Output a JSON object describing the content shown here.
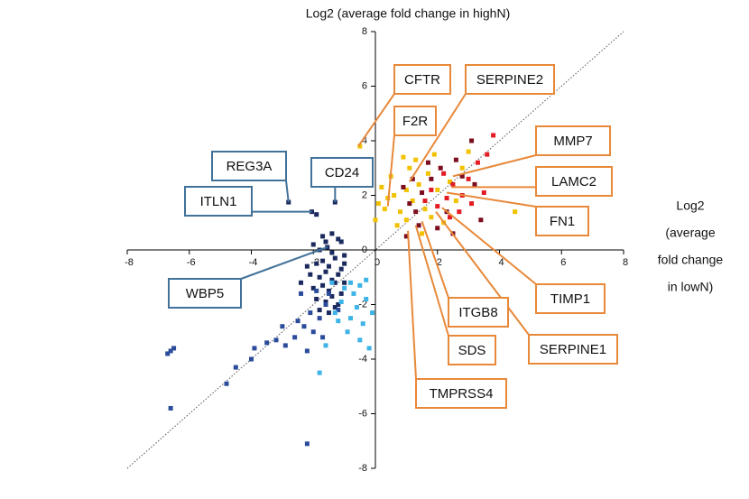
{
  "chart_data": {
    "type": "scatter",
    "title": "Log2 (average fold change in highN)",
    "x_label_lines": [
      "Log2",
      "(average",
      "fold change",
      "in lowN)"
    ],
    "xlim": [
      -8,
      8
    ],
    "ylim": [
      -8,
      8
    ],
    "xticks": [
      -8,
      -6,
      -4,
      -2,
      0,
      2,
      4,
      6,
      8
    ],
    "yticks": [
      -8,
      -6,
      -4,
      -2,
      0,
      2,
      4,
      6,
      8
    ],
    "diagonal": true,
    "series": [
      {
        "color": "#1b2a5e",
        "x": [
          -2.8,
          -1.9,
          -1.3,
          -2.05,
          -1.55,
          -2.0,
          -1.8,
          -1.6,
          -1.4,
          -1.2,
          -1.0,
          -1.9,
          -1.7,
          -1.5,
          -1.3,
          -1.1,
          -2.1,
          -1.8,
          -1.6,
          -1.4,
          -1.2,
          -1.0,
          -2.0,
          -1.7,
          -1.5,
          -1.3,
          -1.1,
          -1.9,
          -1.6,
          -1.4,
          -1.2,
          -1.8,
          -1.5,
          -1.3,
          -2.2,
          -1.0,
          -1.7,
          -1.4,
          -1.1,
          -2.4
        ],
        "y": [
          1.75,
          1.3,
          1.75,
          1.4,
          0.1,
          0.2,
          0.0,
          0.3,
          -0.1,
          0.4,
          -0.2,
          -0.5,
          -0.4,
          -0.6,
          -0.3,
          -0.7,
          -0.9,
          -1.0,
          -0.8,
          -1.1,
          -0.9,
          -1.2,
          -1.4,
          -1.3,
          -1.5,
          -1.2,
          -1.6,
          -1.8,
          -1.9,
          -1.7,
          -2.0,
          -2.2,
          -2.3,
          -2.1,
          -0.6,
          -0.5,
          0.5,
          0.6,
          0.3,
          -1.2
        ]
      },
      {
        "color": "#2b4c9b",
        "x": [
          -6.6,
          -6.6,
          -6.5,
          -6.7,
          -4.8,
          -4.5,
          -4.0,
          -3.9,
          -3.5,
          -3.2,
          -2.2,
          -3.0,
          -2.9,
          -2.6,
          -2.5,
          -2.3,
          -2.1,
          -2.0,
          -1.8,
          -1.6,
          -1.5,
          -2.4,
          -1.9,
          -1.2,
          -1.7,
          -2.2
        ],
        "y": [
          -5.8,
          -3.7,
          -3.6,
          -3.8,
          -4.9,
          -4.3,
          -4.0,
          -3.6,
          -3.4,
          -3.3,
          -7.1,
          -2.8,
          -3.5,
          -3.2,
          -2.6,
          -2.8,
          -2.3,
          -3.0,
          -2.5,
          -2.0,
          -1.6,
          -1.6,
          -1.5,
          -2.2,
          -3.2,
          -3.7
        ]
      },
      {
        "color": "#3db3e6",
        "x": [
          -1.0,
          -0.8,
          -0.5,
          -0.3,
          -0.6,
          -1.2,
          -0.9,
          -0.4,
          -0.2,
          -1.6,
          -1.8,
          -1.1,
          -0.7,
          -1.4,
          -0.1,
          -0.5,
          -1.3,
          -0.8,
          -0.3
        ],
        "y": [
          -1.4,
          -1.2,
          -1.3,
          -1.8,
          -2.1,
          -2.6,
          -3.0,
          -2.7,
          -3.6,
          -3.5,
          -4.5,
          -1.9,
          -1.6,
          -1.2,
          -2.3,
          -3.3,
          -2.3,
          -2.5,
          -1.1
        ]
      },
      {
        "color": "#f2c200",
        "x": [
          -0.5,
          0.0,
          0.1,
          0.3,
          0.4,
          0.6,
          0.8,
          1.0,
          1.2,
          1.4,
          1.6,
          1.1,
          1.3,
          0.9,
          1.7,
          2.0,
          2.4,
          2.8,
          3.0,
          4.5,
          0.5,
          1.8,
          2.2,
          0.7,
          1.5,
          1.0,
          2.6,
          0.2,
          1.9
        ],
        "y": [
          3.8,
          1.1,
          1.7,
          1.5,
          1.9,
          2.0,
          1.4,
          2.2,
          1.8,
          2.4,
          1.5,
          3.0,
          3.3,
          3.4,
          2.8,
          2.2,
          2.5,
          3.0,
          3.6,
          1.4,
          2.7,
          1.2,
          1.0,
          0.9,
          0.6,
          1.1,
          1.8,
          2.3,
          3.5
        ]
      },
      {
        "color": "#e31b23",
        "x": [
          1.6,
          2.0,
          2.3,
          2.5,
          2.8,
          3.0,
          3.3,
          3.6,
          3.8,
          2.2,
          1.8,
          2.7,
          3.1,
          2.4,
          3.5
        ],
        "y": [
          1.8,
          1.6,
          1.9,
          2.4,
          2.0,
          2.6,
          3.2,
          3.5,
          4.2,
          2.8,
          2.2,
          1.4,
          1.7,
          1.2,
          2.1
        ]
      },
      {
        "color": "#7b0d1e",
        "x": [
          1.0,
          1.3,
          1.5,
          1.8,
          2.1,
          2.6,
          3.1,
          2.8,
          1.2,
          1.4,
          2.0,
          2.3,
          3.4,
          1.7,
          2.5,
          1.1,
          0.9,
          3.2
        ],
        "y": [
          0.5,
          1.4,
          2.1,
          2.6,
          3.0,
          3.3,
          4.0,
          2.7,
          2.6,
          0.9,
          0.8,
          1.4,
          1.1,
          3.2,
          0.6,
          1.7,
          2.3,
          2.4
        ]
      }
    ],
    "annotations": [
      {
        "text": "CFTR",
        "x": -0.55,
        "y": 3.8,
        "color": "#e8893a"
      },
      {
        "text": "SERPINE2",
        "x": 1.1,
        "y": 2.5,
        "color": "#e8893a"
      },
      {
        "text": "F2R",
        "x": 0.4,
        "y": 1.6,
        "color": "#e8893a"
      },
      {
        "text": "MMP7",
        "x": 2.5,
        "y": 2.7,
        "color": "#e8893a"
      },
      {
        "text": "LAMC2",
        "x": 2.45,
        "y": 2.3,
        "color": "#e8893a"
      },
      {
        "text": "FN1",
        "x": 2.3,
        "y": 2.1,
        "color": "#e8893a"
      },
      {
        "text": "TIMP1",
        "x": 2.15,
        "y": 1.55,
        "color": "#e8893a"
      },
      {
        "text": "SERPINE1",
        "x": 1.95,
        "y": 1.4,
        "color": "#e8893a"
      },
      {
        "text": "ITGB8",
        "x": 1.5,
        "y": 1.05,
        "color": "#e8893a"
      },
      {
        "text": "SDS",
        "x": 1.3,
        "y": 0.9,
        "color": "#e8893a"
      },
      {
        "text": "TMPRSS4",
        "x": 1.05,
        "y": 0.7,
        "color": "#e8893a"
      },
      {
        "text": "REG3A",
        "x": -2.8,
        "y": 1.75,
        "color": "#41729a"
      },
      {
        "text": "CD24",
        "x": -1.3,
        "y": 1.75,
        "color": "#41729a"
      },
      {
        "text": "ITLN1",
        "x": -2.05,
        "y": 1.4,
        "color": "#41729a"
      },
      {
        "text": "WBP5",
        "x": -1.55,
        "y": 0.1,
        "color": "#41729a"
      }
    ]
  }
}
